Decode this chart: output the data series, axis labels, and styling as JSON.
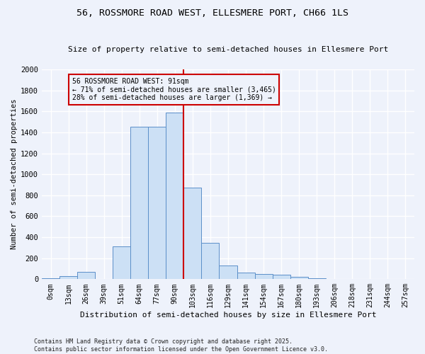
{
  "title": "56, ROSSMORE ROAD WEST, ELLESMERE PORT, CH66 1LS",
  "subtitle": "Size of property relative to semi-detached houses in Ellesmere Port",
  "xlabel": "Distribution of semi-detached houses by size in Ellesmere Port",
  "ylabel": "Number of semi-detached properties",
  "bin_labels": [
    "0sqm",
    "13sqm",
    "26sqm",
    "39sqm",
    "51sqm",
    "64sqm",
    "77sqm",
    "90sqm",
    "103sqm",
    "116sqm",
    "129sqm",
    "141sqm",
    "154sqm",
    "167sqm",
    "180sqm",
    "193sqm",
    "206sqm",
    "218sqm",
    "231sqm",
    "244sqm",
    "257sqm"
  ],
  "bar_heights": [
    12,
    28,
    70,
    5,
    310,
    1450,
    1455,
    1590,
    870,
    345,
    130,
    60,
    50,
    42,
    20,
    8,
    2,
    0,
    0,
    0,
    0
  ],
  "bar_color": "#cce0f5",
  "bar_edge_color": "#5b8fc9",
  "vline_color": "#cc0000",
  "annotation_title": "56 ROSSMORE ROAD WEST: 91sqm",
  "annotation_line1": "← 71% of semi-detached houses are smaller (3,465)",
  "annotation_line2": "28% of semi-detached houses are larger (1,369) →",
  "annotation_box_color": "#cc0000",
  "ylim": [
    0,
    2000
  ],
  "yticks": [
    0,
    200,
    400,
    600,
    800,
    1000,
    1200,
    1400,
    1600,
    1800,
    2000
  ],
  "footer_line1": "Contains HM Land Registry data © Crown copyright and database right 2025.",
  "footer_line2": "Contains public sector information licensed under the Open Government Licence v3.0.",
  "bg_color": "#eef2fb",
  "grid_color": "#ffffff"
}
